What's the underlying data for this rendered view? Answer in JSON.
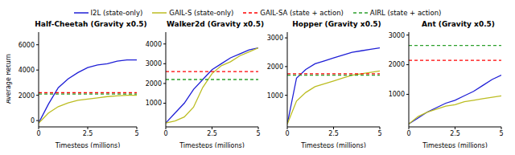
{
  "chart_data": [
    {
      "type": "line",
      "title": "Half-Cheetah (Gravity x0.5)",
      "x_label": "Timesteps (millions)",
      "y_label": "Average Return",
      "x": [
        0,
        0.5,
        1,
        1.5,
        2,
        2.5,
        3,
        3.5,
        4,
        4.5,
        5
      ],
      "xlim": [
        0,
        5
      ],
      "xticks": [
        0,
        2.5,
        5
      ],
      "ylim": [
        -500,
        7000
      ],
      "yticks": [
        0,
        2000,
        4000,
        6000
      ],
      "grid": false,
      "series": [
        {
          "name": "I2L (state-only)",
          "color": "#1f1fd6",
          "line_style": "solid",
          "values": [
            -200,
            1300,
            2600,
            3300,
            3800,
            4200,
            4400,
            4500,
            4700,
            4800,
            4800
          ]
        },
        {
          "name": "GAIL-S (state-only)",
          "color": "#bcbd22",
          "line_style": "solid",
          "values": [
            -200,
            600,
            1100,
            1400,
            1600,
            1700,
            1800,
            1900,
            1950,
            2000,
            2000
          ]
        },
        {
          "name": "GAIL-SA (state + action)",
          "color": "#ff0000",
          "line_style": "dashed",
          "values": [
            2200,
            2200,
            2200,
            2200,
            2200,
            2200,
            2200,
            2200,
            2200,
            2200,
            2200
          ]
        },
        {
          "name": "AIRL (state + action)",
          "color": "#2ca02c",
          "line_style": "dashed",
          "values": [
            2100,
            2100,
            2100,
            2100,
            2100,
            2100,
            2100,
            2100,
            2100,
            2100,
            2100
          ]
        }
      ]
    },
    {
      "type": "line",
      "title": "Walker2d (Gravity x0.5)",
      "x_label": "Timesteps (millions)",
      "x": [
        0,
        0.5,
        1,
        1.5,
        2,
        2.5,
        3,
        3.5,
        4,
        4.5,
        5
      ],
      "xlim": [
        0,
        5
      ],
      "xticks": [
        0,
        2.5,
        5
      ],
      "ylim": [
        -200,
        4600
      ],
      "yticks": [
        1000,
        2000,
        3000,
        4000
      ],
      "grid": false,
      "series": [
        {
          "name": "I2L (state-only)",
          "color": "#1f1fd6",
          "line_style": "solid",
          "values": [
            0,
            500,
            1000,
            1700,
            2200,
            2700,
            3000,
            3300,
            3500,
            3700,
            3800
          ]
        },
        {
          "name": "GAIL-S (state-only)",
          "color": "#bcbd22",
          "line_style": "solid",
          "values": [
            0,
            100,
            300,
            800,
            1800,
            2500,
            2900,
            3100,
            3400,
            3600,
            3800
          ]
        },
        {
          "name": "GAIL-SA (state + action)",
          "color": "#ff0000",
          "line_style": "dashed",
          "values": [
            2600,
            2600,
            2600,
            2600,
            2600,
            2600,
            2600,
            2600,
            2600,
            2600,
            2600
          ]
        },
        {
          "name": "AIRL (state + action)",
          "color": "#2ca02c",
          "line_style": "dashed",
          "values": [
            2200,
            2200,
            2200,
            2200,
            2200,
            2200,
            2200,
            2200,
            2200,
            2200,
            2200
          ]
        }
      ]
    },
    {
      "type": "line",
      "title": "Hopper (Gravity x0.5)",
      "x_label": "Timesteps (millions)",
      "x": [
        0,
        0.5,
        1,
        1.5,
        2,
        2.5,
        3,
        3.5,
        4,
        4.5,
        5
      ],
      "xlim": [
        0,
        5
      ],
      "xticks": [
        0,
        2.5,
        5
      ],
      "ylim": [
        -100,
        3200
      ],
      "yticks": [
        1000,
        2000,
        3000
      ],
      "grid": false,
      "series": [
        {
          "name": "I2L (state-only)",
          "color": "#1f1fd6",
          "line_style": "solid",
          "values": [
            0,
            1600,
            1900,
            2100,
            2200,
            2300,
            2400,
            2500,
            2550,
            2600,
            2650
          ]
        },
        {
          "name": "GAIL-S (state-only)",
          "color": "#bcbd22",
          "line_style": "solid",
          "values": [
            0,
            800,
            1100,
            1300,
            1400,
            1500,
            1600,
            1700,
            1750,
            1800,
            1850
          ]
        },
        {
          "name": "GAIL-SA (state + action)",
          "color": "#ff0000",
          "line_style": "dashed",
          "values": [
            1750,
            1750,
            1750,
            1750,
            1750,
            1750,
            1750,
            1750,
            1750,
            1750,
            1750
          ]
        },
        {
          "name": "AIRL (state + action)",
          "color": "#2ca02c",
          "line_style": "dashed",
          "values": [
            1700,
            1700,
            1700,
            1700,
            1700,
            1700,
            1700,
            1700,
            1700,
            1700,
            1700
          ]
        }
      ]
    },
    {
      "type": "line",
      "title": "Ant (Gravity x0.5)",
      "x_label": "Timesteps (millions)",
      "x": [
        0,
        0.5,
        1,
        1.5,
        2,
        2.5,
        3,
        3.5,
        4,
        4.5,
        5
      ],
      "xlim": [
        0,
        5
      ],
      "xticks": [
        0,
        2.5,
        5
      ],
      "ylim": [
        -100,
        3100
      ],
      "yticks": [
        1000,
        2000,
        3000
      ],
      "grid": false,
      "series": [
        {
          "name": "I2L (state-only)",
          "color": "#1f1fd6",
          "line_style": "solid",
          "values": [
            0,
            200,
            400,
            550,
            700,
            800,
            950,
            1100,
            1300,
            1500,
            1650
          ]
        },
        {
          "name": "GAIL-S (state-only)",
          "color": "#bcbd22",
          "line_style": "solid",
          "values": [
            0,
            250,
            400,
            500,
            600,
            650,
            750,
            800,
            850,
            900,
            950
          ]
        },
        {
          "name": "GAIL-SA (state + action)",
          "color": "#ff0000",
          "line_style": "dashed",
          "values": [
            2150,
            2150,
            2150,
            2150,
            2150,
            2150,
            2150,
            2150,
            2150,
            2150,
            2150
          ]
        },
        {
          "name": "AIRL (state + action)",
          "color": "#2ca02c",
          "line_style": "dashed",
          "values": [
            2650,
            2650,
            2650,
            2650,
            2650,
            2650,
            2650,
            2650,
            2650,
            2650,
            2650
          ]
        }
      ]
    }
  ]
}
